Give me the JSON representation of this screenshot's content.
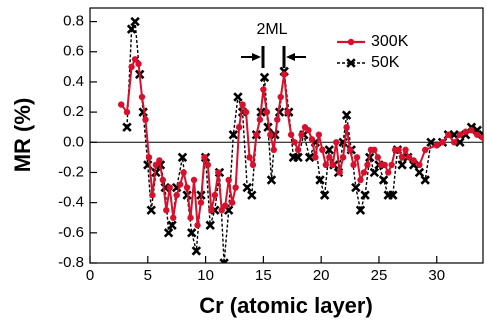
{
  "chart_data": {
    "type": "line",
    "xlabel": "Cr (atomic layer)",
    "ylabel": "MR (%)",
    "annotation": "2ML",
    "xlim": [
      0,
      34
    ],
    "ylim": [
      -0.8,
      0.89
    ],
    "xticks": [
      0,
      5,
      10,
      15,
      20,
      25,
      30
    ],
    "yticks": [
      -0.8,
      -0.6,
      -0.4,
      -0.2,
      {
        "value": 0,
        "label": "0.0"
      },
      0.2,
      0.4,
      0.6,
      0.8
    ],
    "legend": "upper right",
    "series": [
      {
        "name": "300K",
        "color": "#d8102c",
        "marker": "circle",
        "dash": false,
        "x": [
          2.7,
          3.2,
          3.6,
          3.9,
          4.2,
          4.5,
          4.8,
          5.1,
          5.4,
          5.7,
          6.0,
          6.3,
          6.6,
          6.9,
          7.2,
          7.5,
          7.8,
          8.1,
          8.4,
          8.7,
          9.0,
          9.3,
          9.6,
          9.9,
          10.2,
          10.5,
          10.8,
          11.1,
          11.4,
          11.7,
          12.0,
          12.3,
          12.6,
          12.9,
          13.2,
          13.5,
          13.8,
          14.1,
          14.4,
          14.7,
          15.0,
          15.3,
          15.6,
          15.9,
          16.2,
          16.5,
          16.8,
          17.1,
          17.4,
          17.7,
          18.0,
          18.3,
          18.6,
          18.9,
          19.2,
          19.5,
          19.8,
          20.1,
          20.4,
          20.7,
          21.0,
          21.3,
          21.6,
          21.9,
          22.2,
          22.5,
          22.8,
          23.1,
          23.4,
          23.7,
          24.0,
          24.3,
          24.6,
          24.9,
          25.2,
          25.5,
          25.8,
          26.1,
          26.4,
          26.7,
          27.0,
          27.3,
          27.6,
          28.0,
          28.5,
          29.0,
          30.0,
          30.5,
          31.0,
          31.5,
          32.0,
          32.5,
          33.0,
          33.5,
          34.0
        ],
        "values": [
          0.25,
          0.2,
          0.5,
          0.55,
          0.52,
          0.3,
          0.15,
          -0.1,
          -0.35,
          -0.15,
          -0.12,
          -0.25,
          -0.45,
          -0.3,
          -0.5,
          -0.35,
          -0.28,
          -0.2,
          -0.3,
          -0.5,
          -0.25,
          -0.55,
          -0.4,
          -0.1,
          -0.15,
          -0.45,
          -0.35,
          -0.2,
          -0.45,
          -0.42,
          -0.25,
          -0.4,
          -0.3,
          0.1,
          0.25,
          0.2,
          -0.1,
          -0.15,
          0.05,
          0.15,
          0.35,
          0.2,
          0.05,
          -0.05,
          0.15,
          0.3,
          0.45,
          0.2,
          0.05,
          0.0,
          -0.05,
          0.05,
          0.1,
          0.08,
          0.02,
          -0.1,
          0.05,
          -0.05,
          -0.15,
          -0.1,
          -0.15,
          0.0,
          -0.2,
          -0.1,
          0.1,
          -0.05,
          -0.15,
          -0.1,
          -0.25,
          -0.2,
          -0.15,
          -0.05,
          -0.05,
          -0.1,
          -0.15,
          -0.15,
          -0.2,
          -0.15,
          -0.05,
          -0.05,
          -0.1,
          -0.05,
          -0.1,
          -0.12,
          -0.15,
          -0.05,
          -0.02,
          0.0,
          0.05,
          0.0,
          0.05,
          0.07,
          0.08,
          0.05,
          0.03
        ]
      },
      {
        "name": "50K",
        "color": "#000000",
        "marker": "x",
        "dash": true,
        "x": [
          3.2,
          3.6,
          3.9,
          4.3,
          4.6,
          5.0,
          5.3,
          5.7,
          6.1,
          6.5,
          6.8,
          7.1,
          7.5,
          8.0,
          8.4,
          8.8,
          9.2,
          9.6,
          10.0,
          10.4,
          10.8,
          11.2,
          11.6,
          12.0,
          12.4,
          12.8,
          13.2,
          13.6,
          14.0,
          14.4,
          14.8,
          15.1,
          15.4,
          15.7,
          16.0,
          16.4,
          16.8,
          17.2,
          17.6,
          18.0,
          18.5,
          19.0,
          19.5,
          19.9,
          20.3,
          20.7,
          21.1,
          21.5,
          21.9,
          22.2,
          22.6,
          23.0,
          23.4,
          23.8,
          24.2,
          24.6,
          25.0,
          25.4,
          25.8,
          26.2,
          26.6,
          27.0,
          27.5,
          28.0,
          28.5,
          29.0,
          29.5,
          30.5,
          31.0,
          31.5,
          32.0,
          32.5,
          33.0,
          33.5,
          34.0
        ],
        "values": [
          0.1,
          0.75,
          0.8,
          0.45,
          0.2,
          -0.15,
          -0.45,
          -0.2,
          -0.15,
          -0.3,
          -0.6,
          -0.55,
          -0.3,
          -0.1,
          -0.35,
          -0.6,
          -0.72,
          -0.35,
          -0.1,
          -0.55,
          -0.45,
          -0.2,
          -0.8,
          -0.45,
          0.05,
          0.3,
          0.2,
          -0.3,
          -0.35,
          0.05,
          0.2,
          0.43,
          0.1,
          -0.25,
          0.05,
          0.2,
          0.47,
          0.2,
          -0.1,
          -0.1,
          0.05,
          -0.1,
          0.0,
          -0.25,
          -0.35,
          -0.05,
          -0.15,
          -0.2,
          0.0,
          0.18,
          -0.05,
          -0.3,
          -0.45,
          -0.35,
          -0.1,
          -0.2,
          -0.15,
          -0.25,
          -0.35,
          -0.35,
          -0.05,
          -0.15,
          -0.1,
          -0.15,
          -0.2,
          -0.25,
          0.0,
          0.0,
          0.05,
          0.05,
          0.0,
          0.05,
          0.1,
          0.08,
          0.05
        ]
      }
    ]
  }
}
